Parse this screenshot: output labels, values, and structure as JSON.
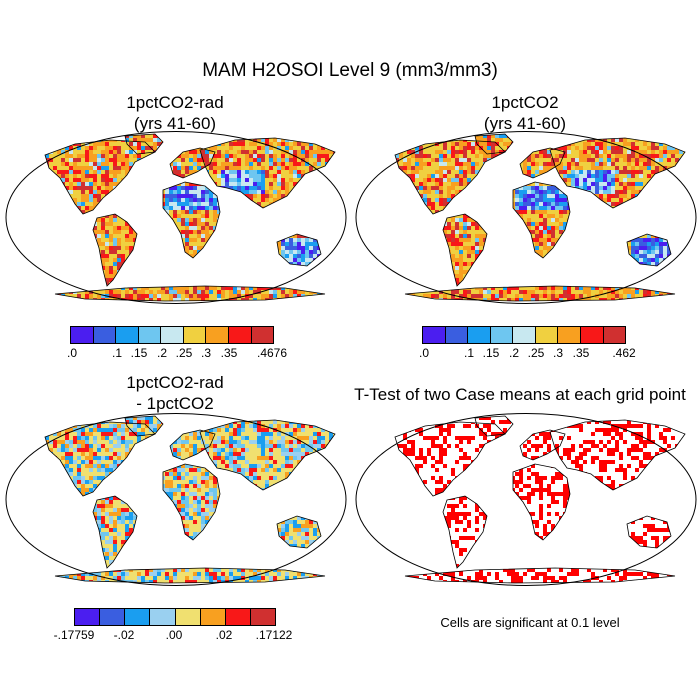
{
  "main_title": "MAM H2OSOI Level 9 (mm3/mm3)",
  "panels": [
    {
      "title1": "1pctCO2-rad",
      "title2": "(yrs 41-60)"
    },
    {
      "title1": "1pctCO2",
      "title2": "(yrs 41-60)"
    },
    {
      "title1": "1pctCO2-rad",
      "title2": "- 1pctCO2"
    },
    {
      "title1": "T-Test of two Case means at each grid point",
      "title2": ""
    }
  ],
  "colorbars": [
    {
      "colors": [
        "#4b1ef0",
        "#3a5ee0",
        "#1a9ef0",
        "#6ec6f0",
        "#c8e8f0",
        "#f0d040",
        "#f8a020",
        "#f81818",
        "#d03030"
      ],
      "labels": [
        ".0",
        ".1",
        ".15",
        ".2",
        ".25",
        ".3",
        ".35",
        ".4676"
      ]
    },
    {
      "colors": [
        "#4b1ef0",
        "#3a5ee0",
        "#1a9ef0",
        "#6ec6f0",
        "#c8e8f0",
        "#f0d040",
        "#f8a020",
        "#f81818",
        "#d03030"
      ],
      "labels": [
        ".0",
        ".1",
        ".15",
        ".2",
        ".25",
        ".3",
        ".35",
        ".462"
      ]
    },
    {
      "colors": [
        "#4b1ef0",
        "#3a5ee0",
        "#1a9ef0",
        "#9ad0f0",
        "#f0e070",
        "#f8a020",
        "#f81818",
        "#d03030"
      ],
      "labels": [
        "-.17759",
        "-.02",
        ".00",
        ".02",
        ".17122"
      ]
    }
  ],
  "ttest_note": "Cells are significant at 0.1 level",
  "colors": {
    "significant": "#ff0000",
    "coast": "#000000"
  }
}
